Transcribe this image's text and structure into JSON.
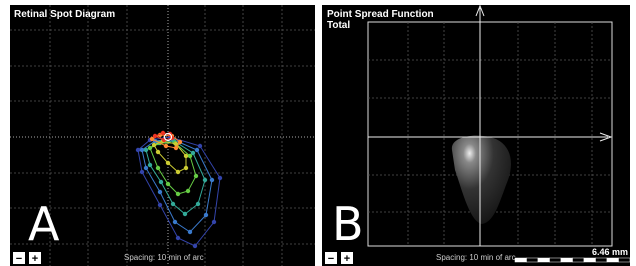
{
  "left_panel": {
    "title": "Retinal Spot Diagram",
    "label": "A",
    "spacing": "Spacing:  10 min of arc",
    "zoom_out": "−",
    "zoom_in": "+"
  },
  "right_panel": {
    "title": "Point Spread Function",
    "subtitle": "Total",
    "label": "B",
    "spacing": "Spacing:  10 min of arc",
    "scale": "6.46 mm",
    "zoom_out": "−",
    "zoom_in": "+"
  }
}
